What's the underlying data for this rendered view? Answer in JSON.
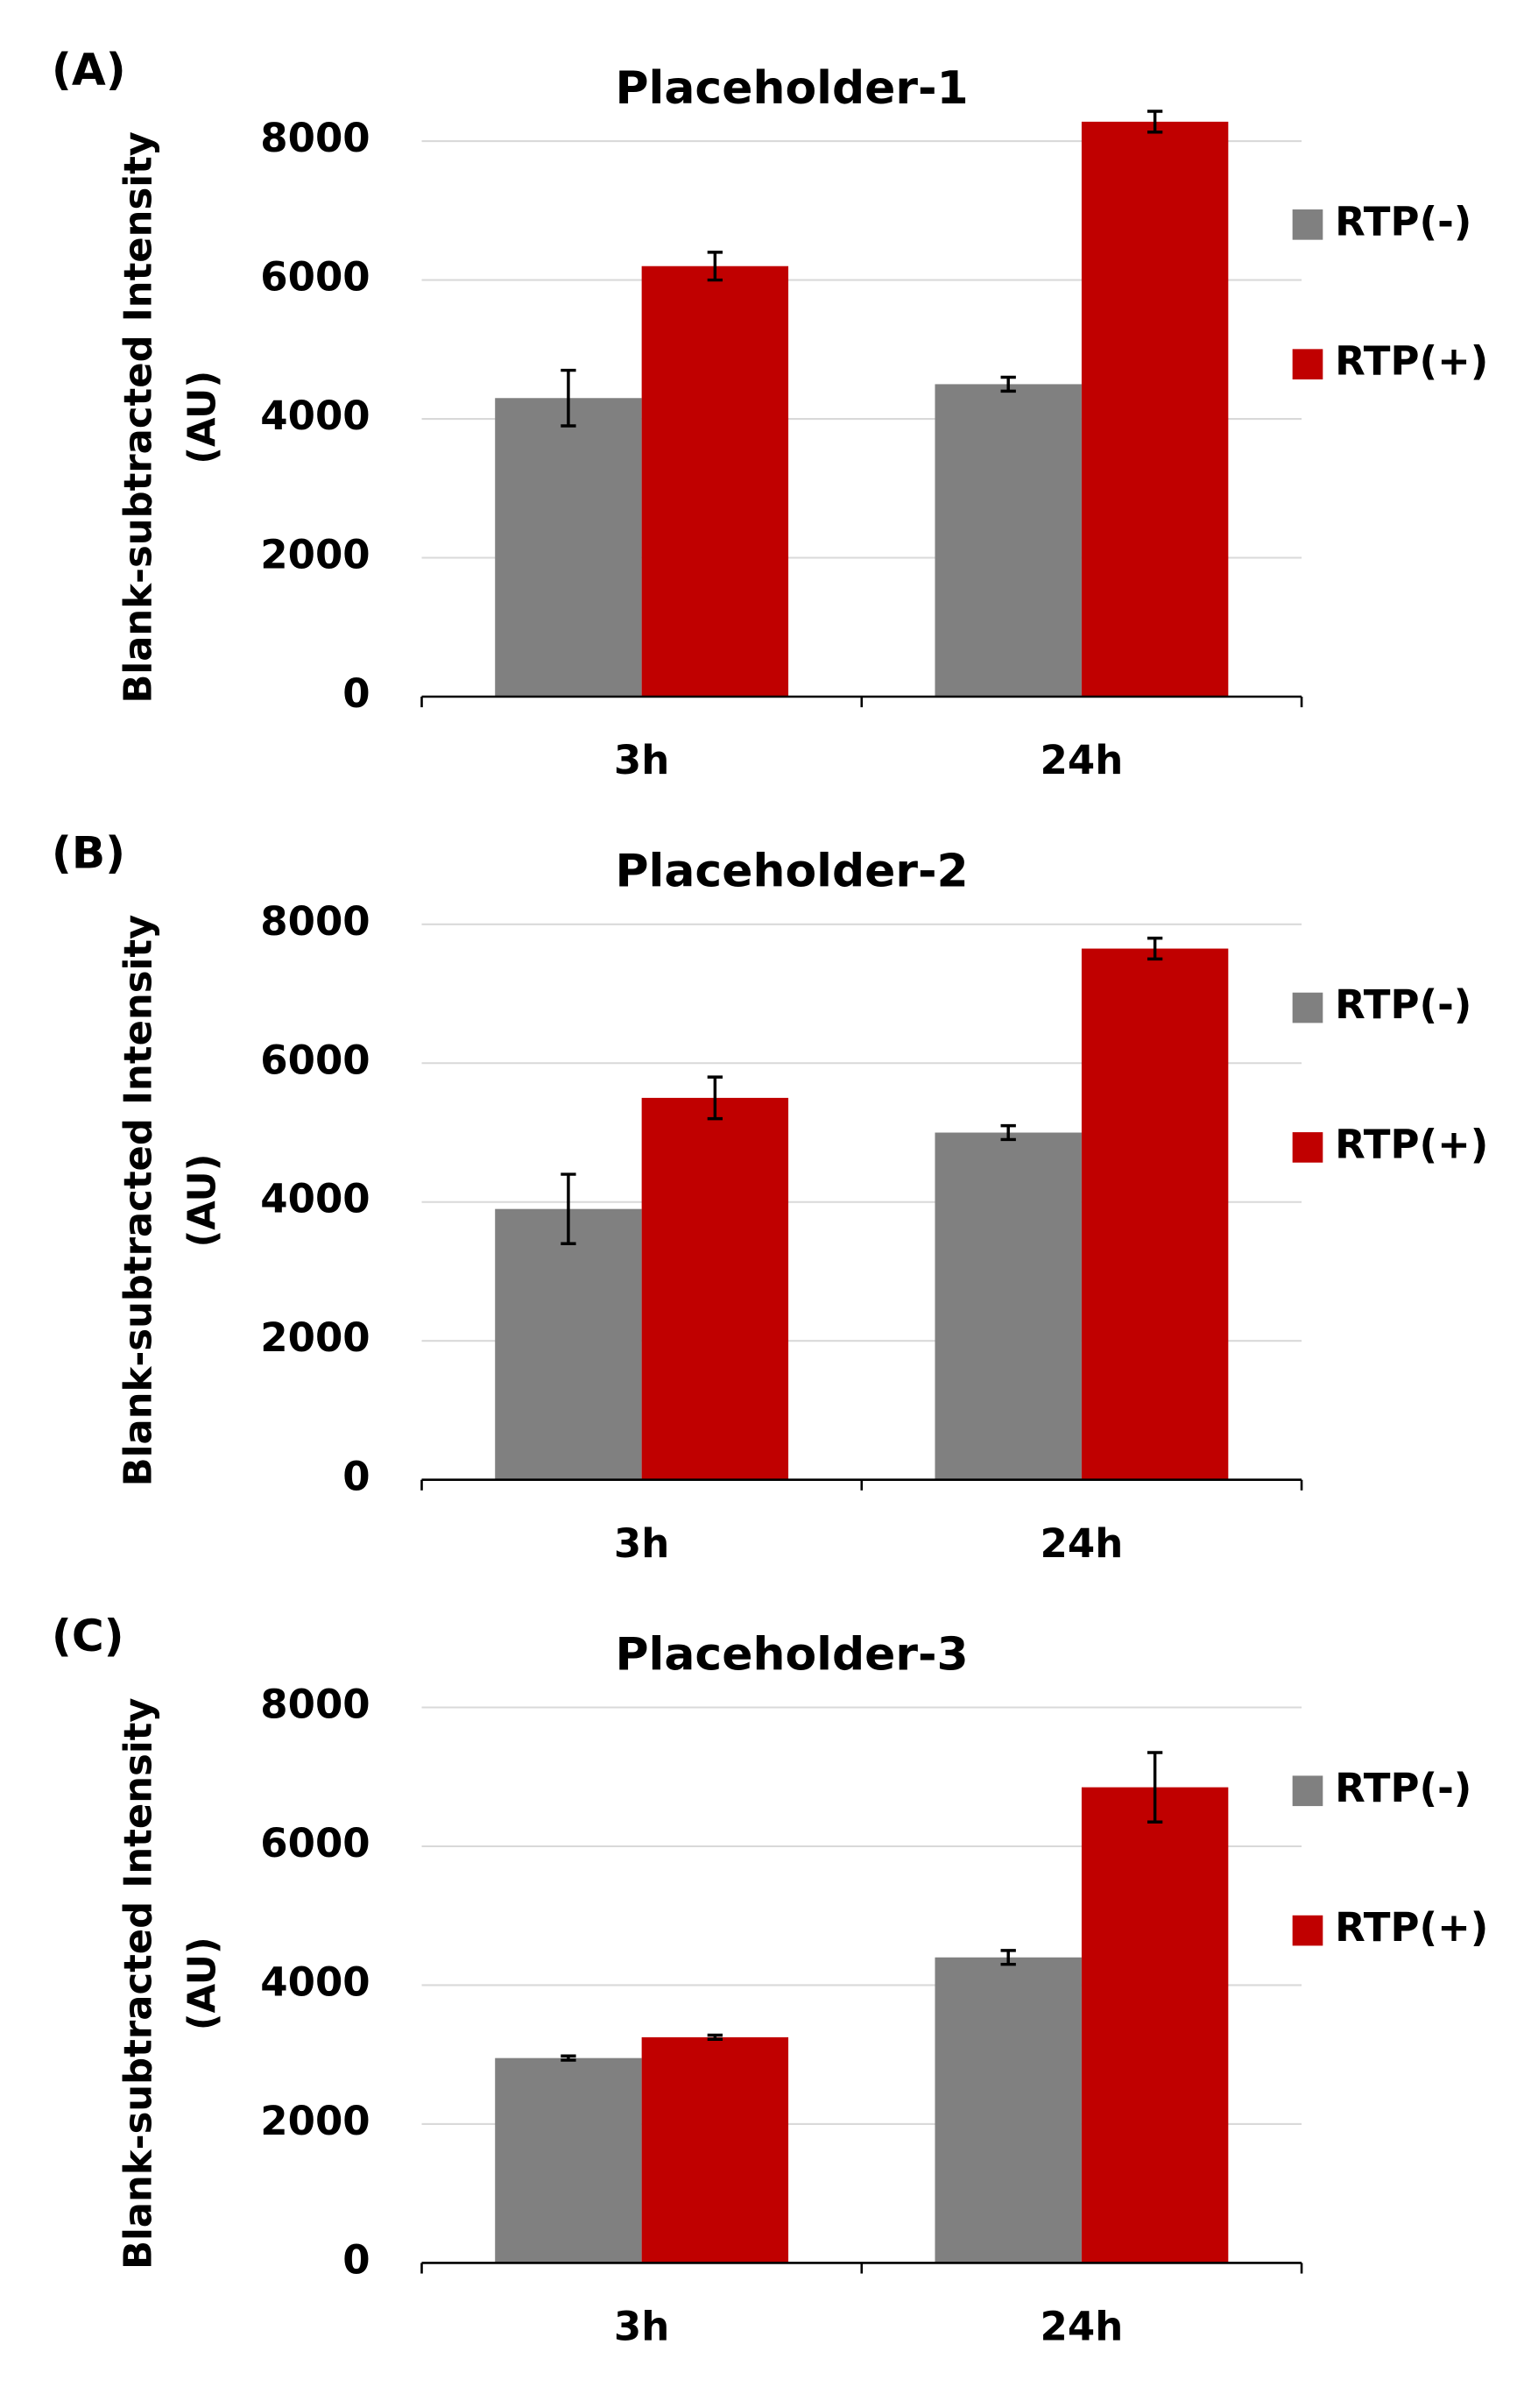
{
  "chart_data": [
    {
      "type": "bar",
      "panel": "(A)",
      "title": "Placeholder-1",
      "ylabel": [
        "Blank-subtracted Intensity",
        "(AU)"
      ],
      "categories": [
        "3h",
        "24h"
      ],
      "series": [
        {
          "name": "RTP(-)",
          "color": "#808080",
          "values": [
            4300,
            4500
          ],
          "errors": [
            400,
            100
          ]
        },
        {
          "name": "RTP(+)",
          "color": "#c00000",
          "values": [
            6200,
            8280
          ],
          "errors": [
            200,
            150
          ]
        }
      ],
      "ylim": [
        0,
        8000
      ],
      "yticks": [
        0,
        2000,
        4000,
        6000,
        8000
      ],
      "grid": true,
      "legend": "right"
    },
    {
      "type": "bar",
      "panel": "(B)",
      "title": "Placeholder-2",
      "ylabel": [
        "Blank-subtracted Intensity",
        "(AU)"
      ],
      "categories": [
        "3h",
        "24h"
      ],
      "series": [
        {
          "name": "RTP(-)",
          "color": "#808080",
          "values": [
            3900,
            5000
          ],
          "errors": [
            500,
            100
          ]
        },
        {
          "name": "RTP(+)",
          "color": "#c00000",
          "values": [
            5500,
            7650
          ],
          "errors": [
            300,
            150
          ]
        }
      ],
      "ylim": [
        0,
        8000
      ],
      "yticks": [
        0,
        2000,
        4000,
        6000,
        8000
      ],
      "grid": true,
      "legend": "right"
    },
    {
      "type": "bar",
      "panel": "(C)",
      "title": "Placeholder-3",
      "ylabel": [
        "Blank-subtracted Intensity",
        "(AU)"
      ],
      "categories": [
        "3h",
        "24h"
      ],
      "series": [
        {
          "name": "RTP(-)",
          "color": "#808080",
          "values": [
            2950,
            4400
          ],
          "errors": [
            30,
            100
          ]
        },
        {
          "name": "RTP(+)",
          "color": "#c00000",
          "values": [
            3250,
            6850
          ],
          "errors": [
            30,
            500
          ]
        }
      ],
      "ylim": [
        0,
        8000
      ],
      "yticks": [
        0,
        2000,
        4000,
        6000,
        8000
      ],
      "grid": true,
      "legend": "right"
    }
  ]
}
